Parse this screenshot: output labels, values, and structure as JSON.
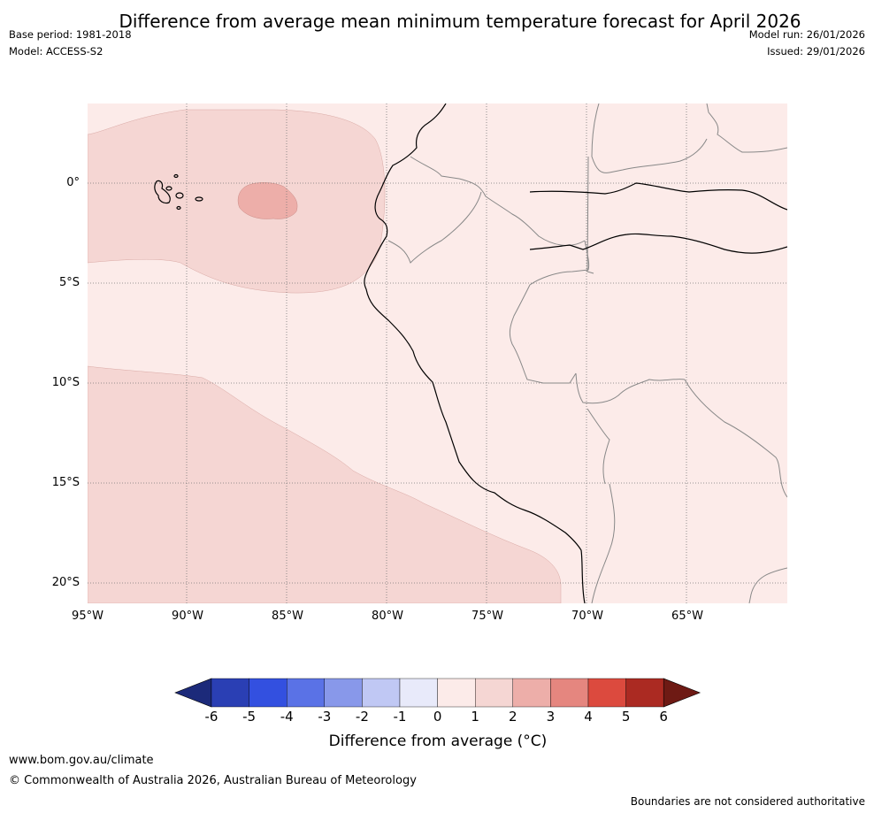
{
  "title": "Difference from average mean minimum temperature forecast for April 2026",
  "meta": {
    "base_period": "Base period: 1981-2018",
    "model": "Model: ACCESS-S2",
    "model_run": "Model run: 26/01/2026",
    "issued": "Issued: 29/01/2026"
  },
  "axes": {
    "lat_labels": [
      "0°",
      "5°S",
      "10°S",
      "15°S",
      "20°S"
    ],
    "lon_labels": [
      "95°W",
      "90°W",
      "85°W",
      "80°W",
      "75°W",
      "70°W",
      "65°W"
    ]
  },
  "colorbar": {
    "ticks": [
      "-6",
      "-5",
      "-4",
      "-3",
      "-2",
      "-1",
      "0",
      "1",
      "2",
      "3",
      "4",
      "5",
      "6"
    ],
    "colors": [
      "#1c2a7a",
      "#2a3fb4",
      "#3350e0",
      "#5a72e6",
      "#8898ea",
      "#c0c8f4",
      "#e8eafa",
      "#fcebe9",
      "#f5d6d3",
      "#edaea9",
      "#e5867f",
      "#dc4a3e",
      "#ab2a22",
      "#6e1a14"
    ],
    "title": "Difference from average (°C)"
  },
  "footer": {
    "website": "www.bom.gov.au/climate",
    "copyright": "© Commonwealth of Australia 2026, Australian Bureau of Meteorology",
    "note": "Boundaries are not considered authoritative"
  }
}
